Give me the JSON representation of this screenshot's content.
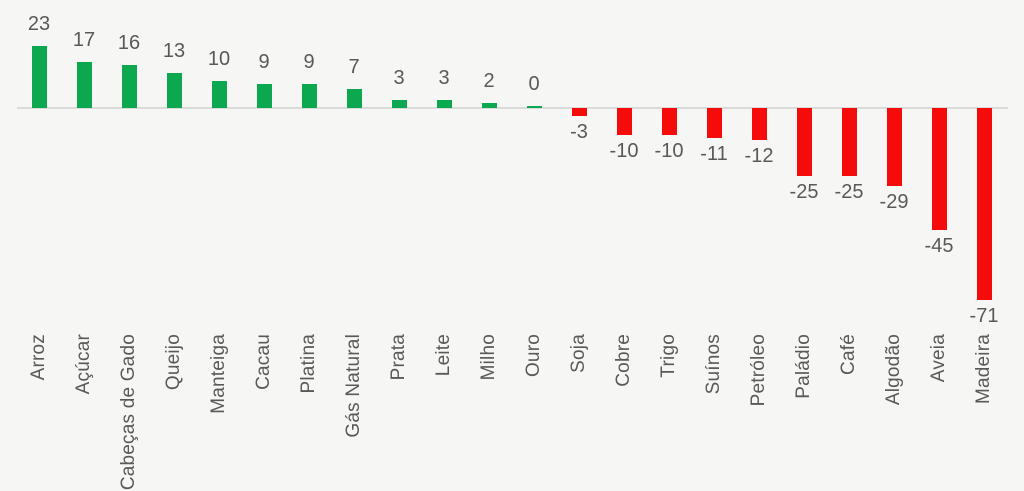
{
  "chart_data": {
    "type": "bar",
    "title": "",
    "xlabel": "",
    "ylabel": "",
    "categories": [
      "Arroz",
      "Açúcar",
      "Cabeças de Gado",
      "Queijo",
      "Manteiga",
      "Cacau",
      "Platina",
      "Gás Natural",
      "Prata",
      "Leite",
      "Milho",
      "Ouro",
      "Soja",
      "Cobre",
      "Trigo",
      "Suínos",
      "Petróleo",
      "Paládio",
      "Café",
      "Algodão",
      "Aveia",
      "Madeira"
    ],
    "values": [
      23,
      17,
      16,
      13,
      10,
      9,
      9,
      7,
      3,
      3,
      2,
      0,
      -3,
      -10,
      -10,
      -11,
      -12,
      -25,
      -25,
      -29,
      -45,
      -71
    ],
    "value_labels": [
      "23",
      "17",
      "16",
      "13",
      "10",
      "9",
      "9",
      "7",
      "3",
      "3",
      "2",
      "0",
      "-3",
      "-10",
      "-10",
      "-11",
      "-12",
      "-25",
      "-25",
      "-29",
      "-45",
      "-71"
    ],
    "ylim": [
      -80,
      30
    ],
    "grid": false,
    "legend": "none",
    "colors": {
      "positive": "#0ba850",
      "negative": "#f60b0b",
      "label_text": "#595959",
      "axis_line": "#dbdbdb",
      "background": "#f6f6f5"
    }
  }
}
